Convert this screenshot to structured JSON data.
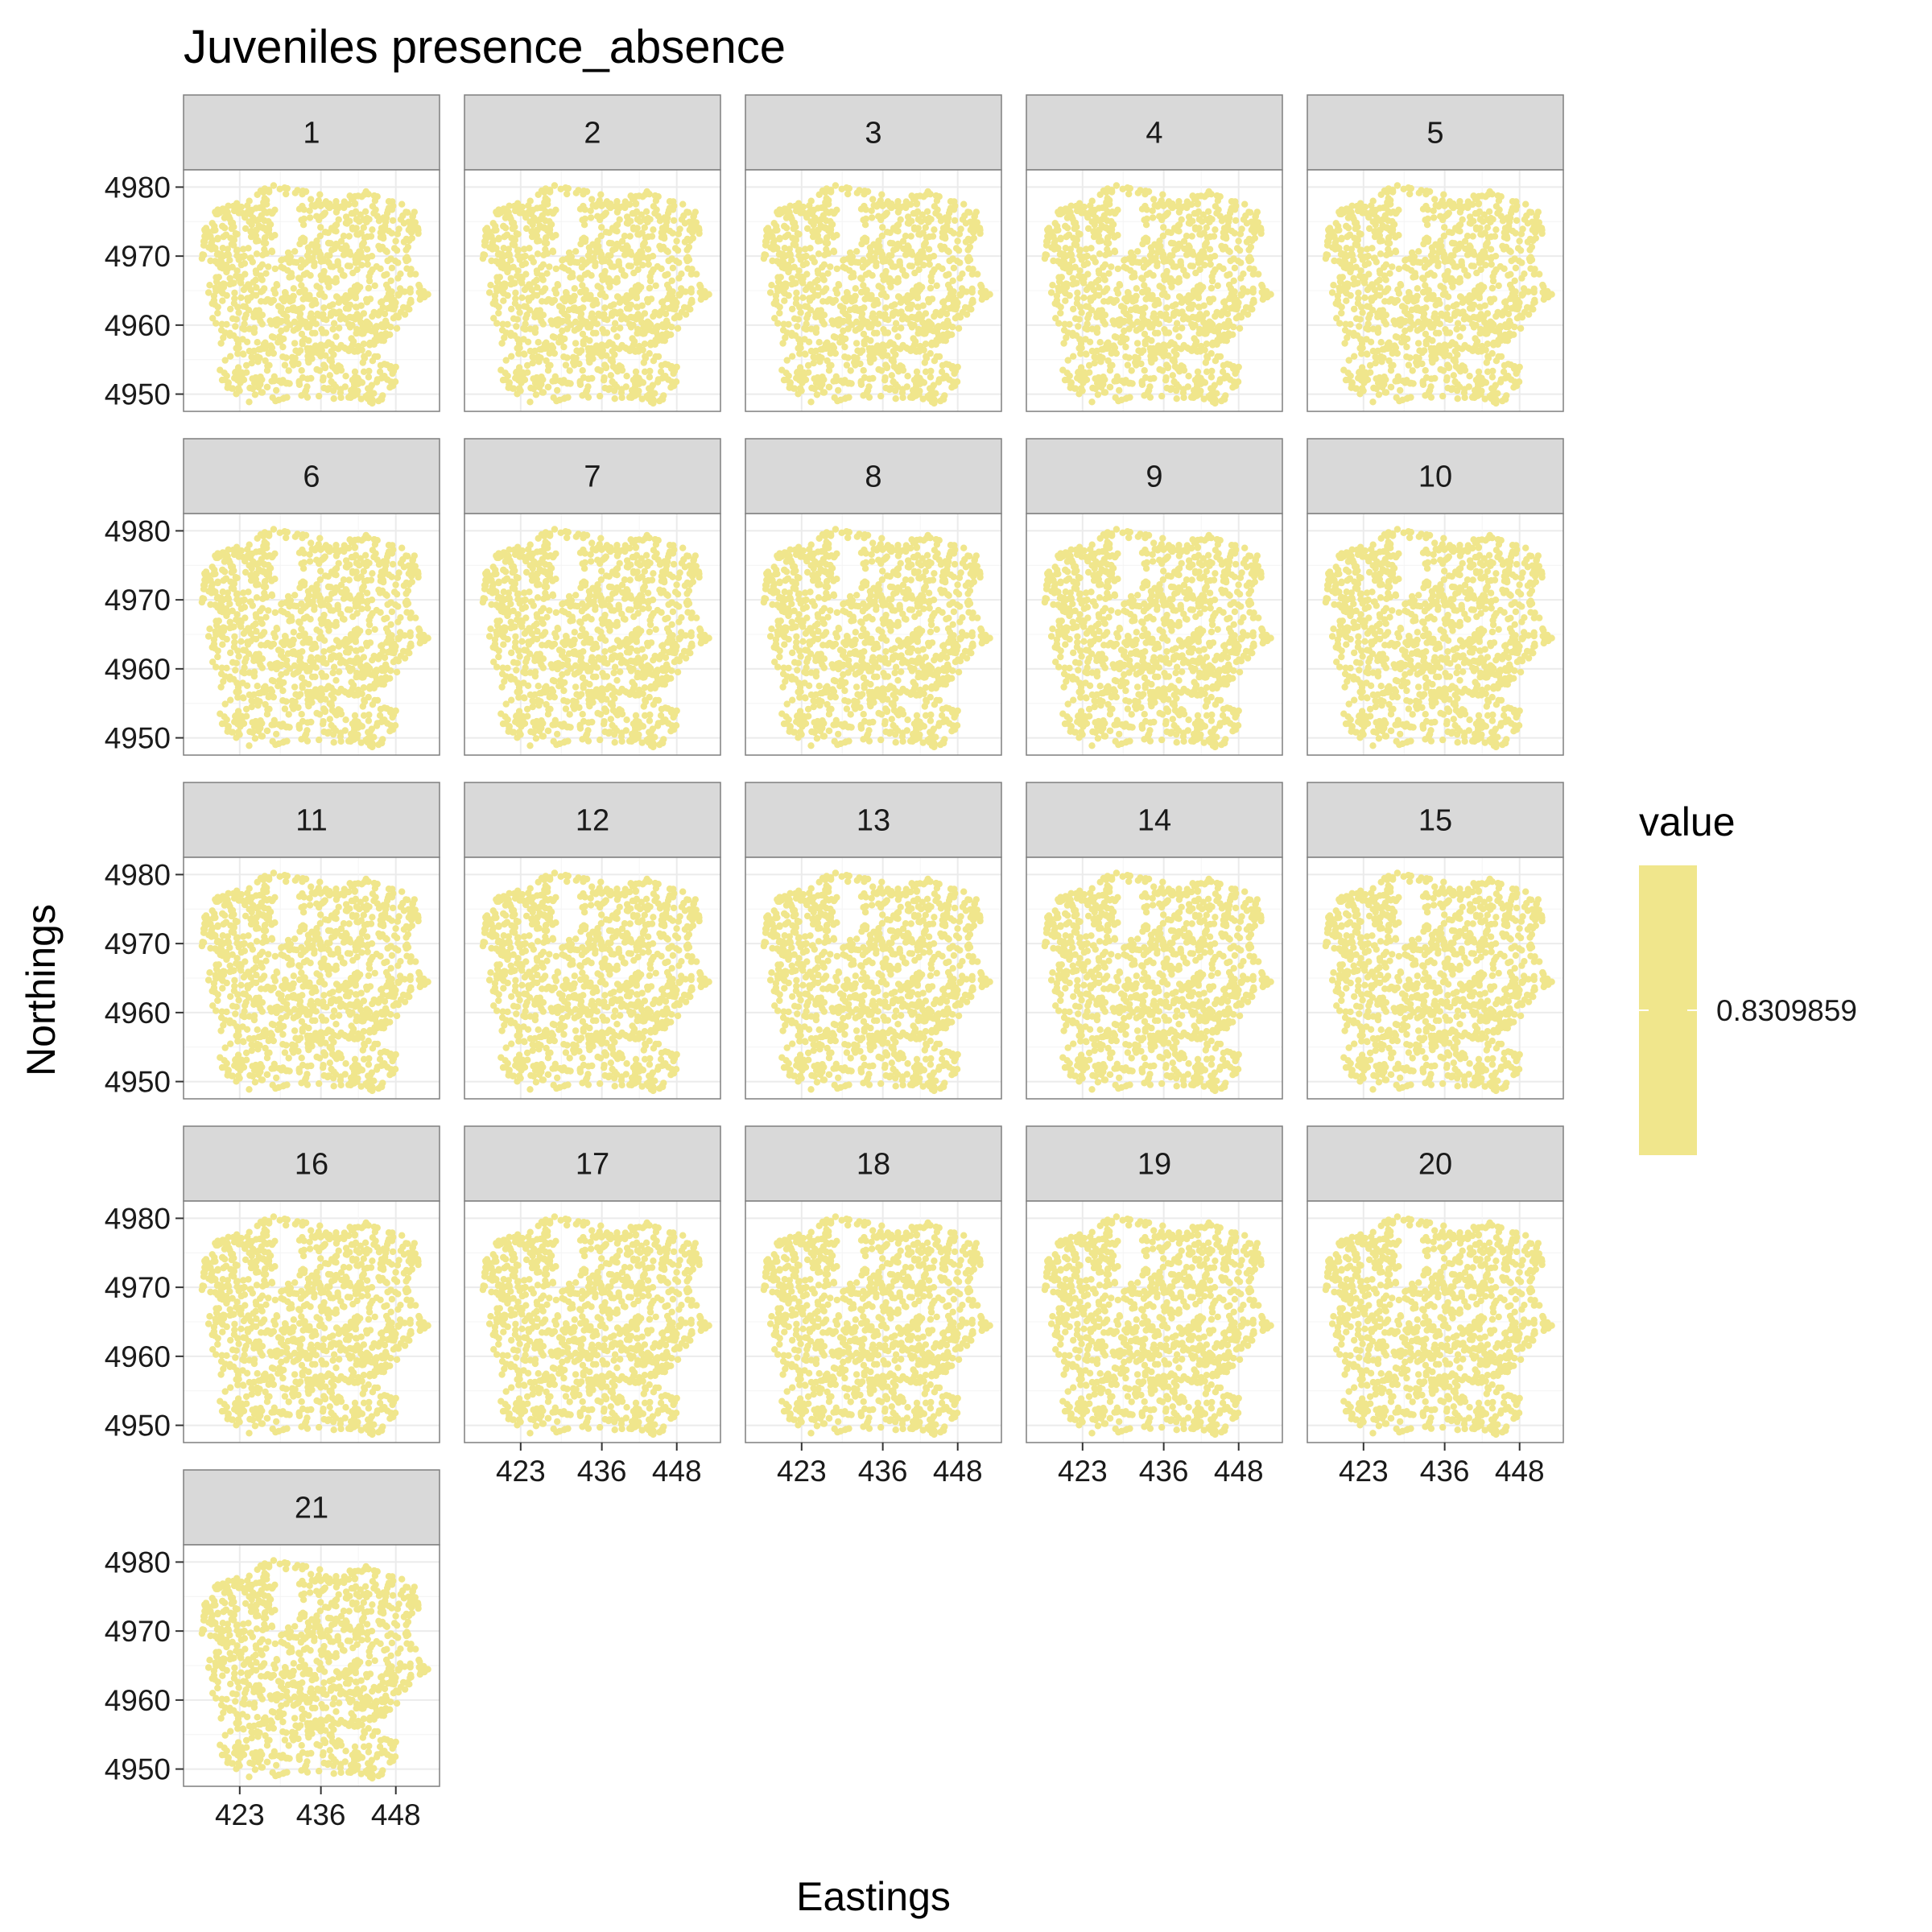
{
  "chart_data": {
    "type": "scatter",
    "title": "Juveniles presence_absence",
    "xlabel": "Eastings",
    "ylabel": "Northings",
    "facets": [
      "1",
      "2",
      "3",
      "4",
      "5",
      "6",
      "7",
      "8",
      "9",
      "10",
      "11",
      "12",
      "13",
      "14",
      "15",
      "16",
      "17",
      "18",
      "19",
      "20",
      "21"
    ],
    "ncol": 5,
    "x_ticks": [
      423,
      436,
      448
    ],
    "y_ticks": [
      4950,
      4960,
      4970,
      4980
    ],
    "xlim": [
      414,
      455
    ],
    "ylim": [
      4947.5,
      4982.5
    ],
    "grid": true,
    "point_color": "#F0E68C",
    "legend": {
      "title": "value",
      "label": "0.8309859",
      "position": "right"
    }
  }
}
